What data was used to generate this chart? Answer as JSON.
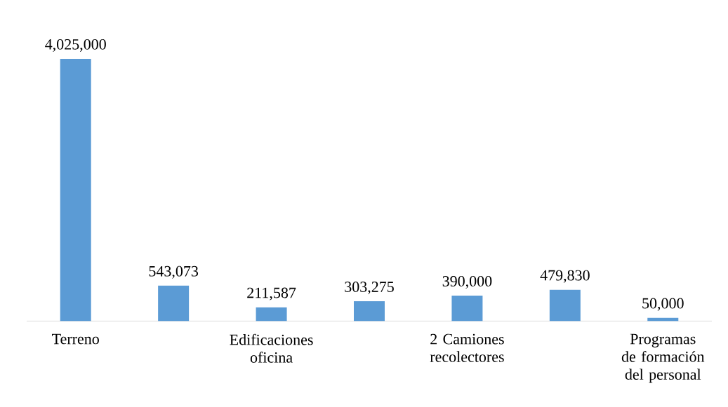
{
  "chart_data": {
    "type": "bar",
    "categories": [
      "Terreno",
      null,
      "Edificaciones oficina",
      null,
      "2 Camiones recolectores",
      null,
      "Programas de formación del personal"
    ],
    "values": [
      4025000,
      543073,
      211587,
      303275,
      390000,
      479830,
      50000
    ],
    "color": "#5b9bd5",
    "value_labels": [
      "4,025,000",
      "543,073",
      "211,587",
      "303,275",
      "390,000",
      "479,830",
      "50,000"
    ]
  }
}
